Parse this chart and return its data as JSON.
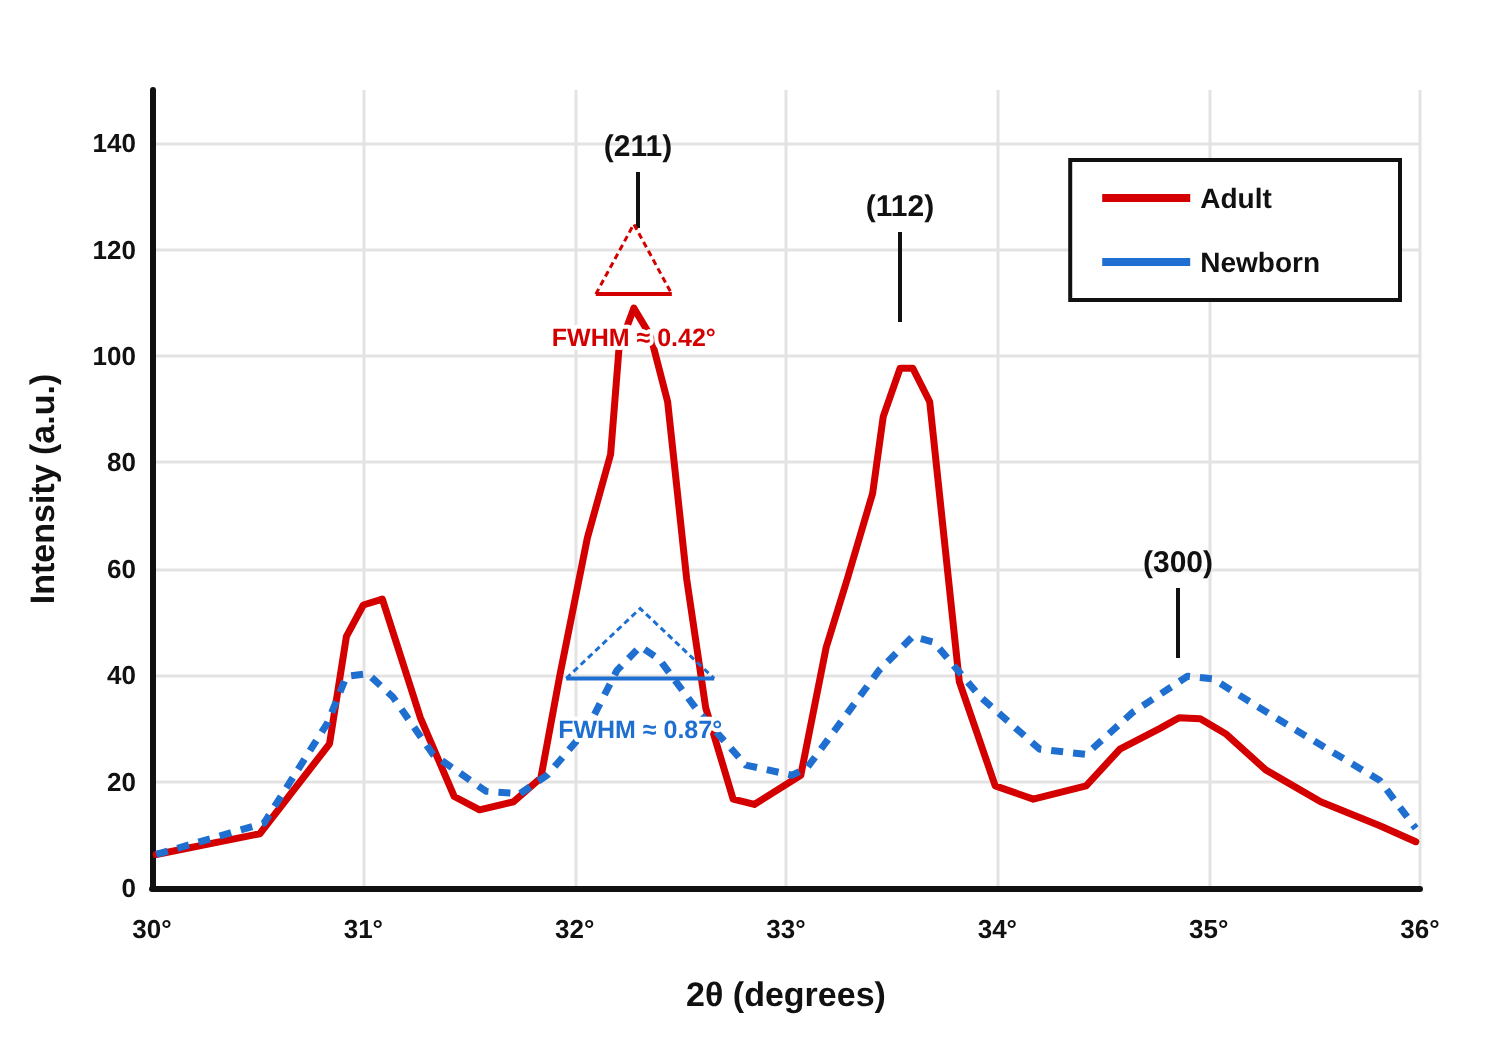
{
  "chart_data": {
    "type": "line",
    "xlabel": "2θ (degrees)",
    "ylabel": "Intensity (a.u.)",
    "xlim": [
      30,
      36
    ],
    "xticks": [
      {
        "value": 30,
        "label": "30°"
      },
      {
        "value": 31,
        "label": "31°"
      },
      {
        "value": 32,
        "label": "32°"
      },
      {
        "value": 33,
        "label": "33°"
      },
      {
        "value": 34,
        "label": "34°"
      },
      {
        "value": 35,
        "label": "35°"
      },
      {
        "value": 36,
        "label": "36°"
      }
    ],
    "ylim": [
      0,
      150
    ],
    "yticks": [
      0,
      20,
      40,
      60,
      80,
      100,
      120,
      140
    ],
    "grid": true,
    "legend": "top right",
    "marker": "none",
    "series": [
      {
        "name": "Adult",
        "color": "#d40000",
        "line_style": "solid",
        "x": [
          30.02,
          30.51,
          30.84,
          30.92,
          31.0,
          31.09,
          31.27,
          31.43,
          31.55,
          31.71,
          31.84,
          31.93,
          32.06,
          32.17,
          32.21,
          32.28,
          32.36,
          32.44,
          32.53,
          32.62,
          32.75,
          32.85,
          33.07,
          33.19,
          33.29,
          33.41,
          33.46,
          33.54,
          33.6,
          33.68,
          33.82,
          33.99,
          34.17,
          34.42,
          34.58,
          34.77,
          34.86,
          34.96,
          35.08,
          35.27,
          35.53,
          35.81,
          35.98
        ],
        "values": [
          6.3,
          10.2,
          27.1,
          47.3,
          53.2,
          54.3,
          32,
          17.2,
          14.7,
          16.2,
          20.7,
          40,
          65.8,
          81.5,
          101.5,
          109,
          103.7,
          91.4,
          58.1,
          33.9,
          16.7,
          15.7,
          21.2,
          45.2,
          58.1,
          74.2,
          88.6,
          97.7,
          97.7,
          91.4,
          38.8,
          19.2,
          16.7,
          19.2,
          26.1,
          30,
          32,
          31.8,
          29,
          22.2,
          16.2,
          11.7,
          8.7
        ]
      },
      {
        "name": "Newborn",
        "color": "#1f6fd1",
        "line_style": "dashed",
        "x": [
          30.02,
          30.53,
          30.83,
          30.92,
          31.02,
          31.14,
          31.33,
          31.58,
          31.74,
          31.87,
          32.06,
          32.2,
          32.31,
          32.4,
          32.59,
          32.81,
          33.03,
          33.1,
          33.44,
          33.6,
          33.7,
          33.92,
          34.2,
          34.42,
          34.64,
          34.9,
          35.02,
          35.4,
          35.81,
          35.98
        ],
        "values": [
          6.3,
          12.2,
          31,
          39.8,
          40.3,
          35.9,
          25.1,
          18.2,
          17.7,
          21.2,
          30,
          40.9,
          45.4,
          43,
          32.9,
          23.1,
          21.2,
          22.6,
          40.9,
          47.3,
          46.2,
          35.9,
          26.1,
          25.1,
          33,
          39.8,
          39.3,
          30,
          20.2,
          11.2
        ]
      }
    ],
    "annotations": [
      "(211)",
      "(112)",
      "(300)",
      {
        "text": "FWHM ≈ 0.42°",
        "x": 32.28,
        "y": 109
      },
      {
        "text": "FWHM ≈ 0.87°",
        "x": 32.31,
        "y": 45.4
      }
    ]
  }
}
